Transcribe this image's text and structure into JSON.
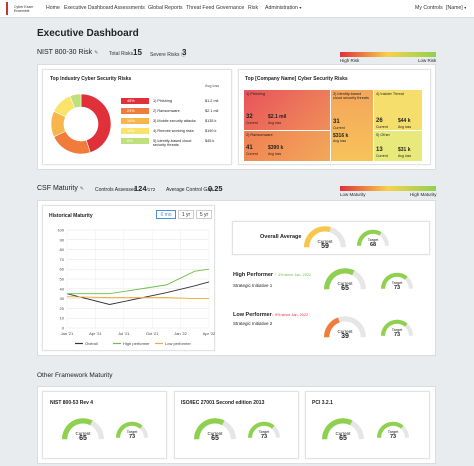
{
  "nav": {
    "logo_line1": "Cyber Exam",
    "logo_line2": "Ensemble",
    "items": [
      "Home",
      "Executive Dashboard",
      "Assessments",
      "Global Reports",
      "Threat Feed",
      "Governance",
      "Risk",
      "Administration"
    ],
    "my_controls": "My Controls",
    "user": "[Name]"
  },
  "page_title": "Executive Dashboard",
  "nist_risk": {
    "title": "NIST 800-30 Risk",
    "total_label": "Total Risks",
    "total_value": "15",
    "severe_label": "Severe Risks",
    "severe_value": "3",
    "legend_high": "High Risk",
    "legend_low": "Low Risk"
  },
  "industry_risks": {
    "title": "Top Industry Cyber Security Risks",
    "col_header": "Avg loss",
    "rows": [
      {
        "pct": "45%",
        "label": "1) Phishing",
        "loss": "$1.2 mil",
        "color": "#e0303a"
      },
      {
        "pct": "23%",
        "label": "2) Ransomware",
        "loss": "$2.1 mil",
        "color": "#f07b3a"
      },
      {
        "pct": "14%",
        "label": "3) Mobile security attacks",
        "loss": "$135 k",
        "color": "#f6b64b"
      },
      {
        "pct": "12%",
        "label": "4) Remote working risks",
        "loss": "$190 k",
        "color": "#f9e36a"
      },
      {
        "pct": "6%",
        "label": "5) Identity-based cloud security threats",
        "loss": "$45 k",
        "color": "#bfe07a"
      }
    ]
  },
  "company_risks": {
    "title": "Top [Company Name] Cyber Security Risks",
    "cells": [
      {
        "label": "1) Phishing",
        "v1": "32",
        "l1": "Current",
        "v2": "$2.1 mil",
        "l2": "Avg loss"
      },
      {
        "label": "2) Ransomware",
        "v1": "41",
        "l1": "Current",
        "v2": "$390 k",
        "l2": "Avg loss"
      },
      {
        "label": "3) Identity-based cloud security threats",
        "v1": "31",
        "l1": "Current",
        "v2": "$316 k",
        "l2": "Avg loss"
      },
      {
        "label": "4) Insider Threat",
        "v1": "26",
        "l1": "Current",
        "v2": "$44 k",
        "l2": "Avg loss"
      },
      {
        "label": "5) Other",
        "v1": "13",
        "l1": "Current",
        "v2": "$31 k",
        "l2": "Avg loss"
      }
    ]
  },
  "csf": {
    "title": "CSF Maturity",
    "assessed_label": "Controls Assessed",
    "assessed_value": "124",
    "assessed_total": "/172",
    "gap_label": "Average Control Gap",
    "gap_value": "0.25",
    "legend_low": "Low Maturity",
    "legend_high": "High Maturity"
  },
  "historical": {
    "title": "Historical Maturity",
    "ranges": [
      "6 mo",
      "1 yr",
      "5 yr"
    ],
    "active_range": "6 mo",
    "legend": [
      "Overall",
      "High performer",
      "Low performer"
    ]
  },
  "chart_data": {
    "type": "line",
    "title": "Historical Maturity",
    "x": [
      "Jan '21",
      "Apr '21",
      "Jul '21",
      "Oct '21",
      "Jan '22",
      "Apr '22"
    ],
    "ylim": [
      0,
      100
    ],
    "yticks": [
      0,
      10,
      20,
      30,
      40,
      50,
      60,
      70,
      80,
      90,
      100
    ],
    "series": [
      {
        "name": "Overall",
        "color": "#333333",
        "values": [
          30,
          30,
          30,
          30,
          30,
          30
        ]
      },
      {
        "name": "High performer",
        "color": "#6cc04a",
        "values": [
          30,
          30,
          30,
          30,
          30,
          30
        ]
      },
      {
        "name": "Low performer",
        "color": "#f2a93b",
        "values": [
          30,
          30,
          30,
          30,
          30,
          30
        ]
      }
    ],
    "lines": [
      {
        "name": "Overall",
        "color": "#333333",
        "points": [
          [
            0,
            35
          ],
          [
            3,
            24
          ],
          [
            7,
            36
          ],
          [
            9,
            43
          ],
          [
            10,
            47
          ]
        ]
      },
      {
        "name": "High performer",
        "color": "#6cc04a",
        "points": [
          [
            0,
            35
          ],
          [
            3,
            35
          ],
          [
            7,
            44
          ],
          [
            9,
            58
          ],
          [
            10,
            60
          ]
        ]
      },
      {
        "name": "Low performer",
        "color": "#f2a93b",
        "points": [
          [
            0,
            32
          ],
          [
            3,
            31
          ],
          [
            7,
            31
          ],
          [
            9,
            30
          ],
          [
            10,
            30
          ]
        ]
      }
    ]
  },
  "overall": {
    "label": "Overall Average",
    "current_label": "Current",
    "current": "59",
    "target_label": "Target",
    "target": "68"
  },
  "high_perf": {
    "title": "High Performer",
    "change": "↑ 4% since Jan, 2022",
    "initiative": "Strategic Initiative 1",
    "current_label": "Current",
    "current": "65",
    "target_label": "Target",
    "target": "73"
  },
  "low_perf": {
    "title": "Low Performer",
    "change": "↓ 9% since Jan, 2022",
    "initiative": "Strategic Initiative 2",
    "current_label": "Current",
    "current": "39",
    "target_label": "Target",
    "target": "73"
  },
  "other_frameworks": {
    "title": "Other Framework Maturity",
    "items": [
      {
        "name": "NIST 800-53 Rev 4",
        "current_label": "Current",
        "current": "65",
        "target_label": "Target",
        "target": "73"
      },
      {
        "name": "ISO/IEC 27001 Second edition 2013",
        "current_label": "Current",
        "current": "65",
        "target_label": "Target",
        "target": "73"
      },
      {
        "name": "PCI 3.2.1",
        "current_label": "Current",
        "current": "65",
        "target_label": "Target",
        "target": "73"
      }
    ]
  },
  "colors": {
    "red": "#e0303a",
    "orange": "#f07b3a",
    "yellow": "#f6d24b",
    "green": "#8fd14f",
    "gauge_track": "#e6e6e6"
  },
  "gauge_levels": {
    "overall_current": 0.59,
    "overall_target": 0.68,
    "high_current": 0.65,
    "high_target": 0.73,
    "low_current": 0.39,
    "low_target": 0.73,
    "fw_current": 0.65,
    "fw_target": 0.73
  }
}
